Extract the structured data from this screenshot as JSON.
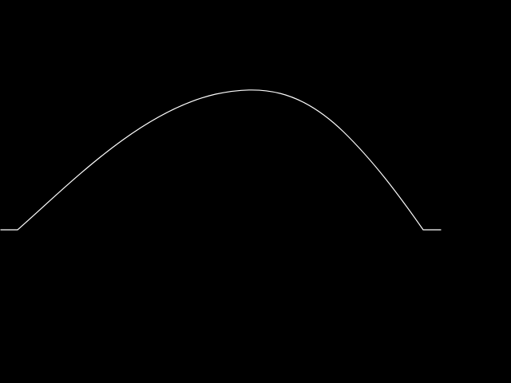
{
  "scene": {
    "background_color": "#000000",
    "curve_color": "#ffffff",
    "shape": "single-arch-curve-with-flat-ends"
  }
}
